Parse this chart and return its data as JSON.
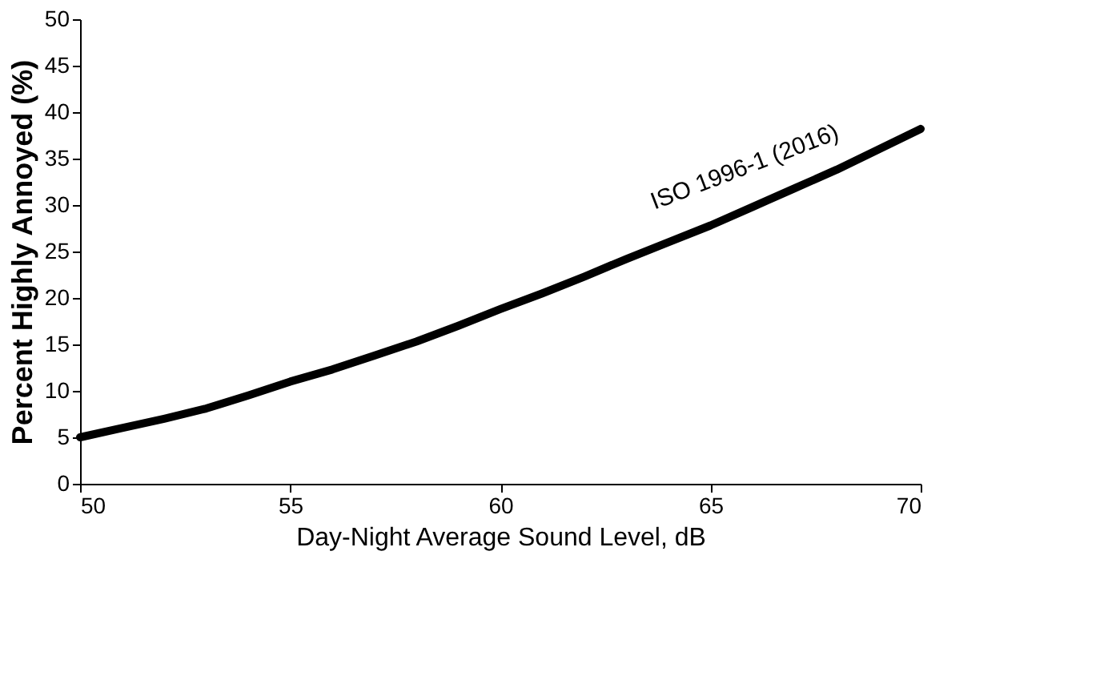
{
  "chart_data": {
    "type": "line",
    "xlabel": "Day-Night Average Sound Level, dB",
    "ylabel": "Percent Highly Annoyed (%)",
    "x": [
      50,
      51,
      52,
      53,
      54,
      55,
      56,
      57,
      58,
      59,
      60,
      61,
      62,
      63,
      64,
      65,
      66,
      67,
      68,
      69,
      70
    ],
    "series": [
      {
        "color": "#000000",
        "values": [
          5.0,
          6.0,
          7.0,
          8.1,
          9.5,
          11.0,
          12.3,
          13.8,
          15.3,
          17.0,
          18.8,
          20.5,
          22.3,
          24.2,
          26.0,
          27.8,
          29.8,
          31.8,
          33.8,
          36.0,
          38.2
        ]
      }
    ],
    "annotations": [
      "ISO 1996-1 (2016)"
    ],
    "xlim": [
      50,
      70
    ],
    "xticks": [
      50,
      55,
      60,
      65,
      70
    ],
    "ylim": [
      0,
      50
    ],
    "yticks": [
      0,
      5,
      10,
      15,
      20,
      25,
      30,
      35,
      40,
      45,
      50
    ],
    "grid": false,
    "marker": "none",
    "line_style": "solid"
  }
}
